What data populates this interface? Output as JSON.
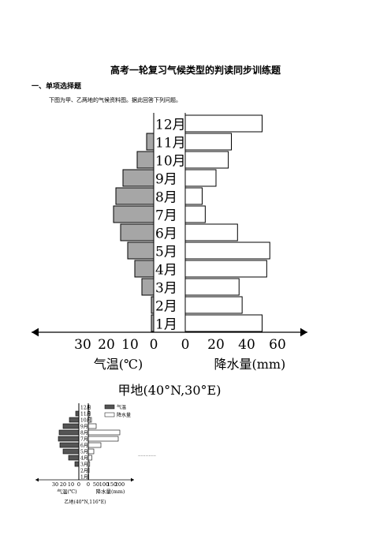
{
  "document": {
    "title": "高考一轮复习气候类型的判读同步训练题",
    "section": "一、单项选择题",
    "question": "下图为甲、乙两地的气候资料图。据此回答下列问题。",
    "dots": "............"
  },
  "chart_data": [
    {
      "type": "bar",
      "orientation": "horizontal-butterfly",
      "title": "甲地(40°N,30°E)",
      "categories": [
        "1月",
        "2月",
        "3月",
        "4月",
        "5月",
        "6月",
        "7月",
        "8月",
        "9月",
        "10月",
        "11月",
        "12月"
      ],
      "left_axis": {
        "label": "气温(℃)",
        "ticks": [
          "30",
          "20",
          "10",
          "0"
        ],
        "range": [
          0,
          30
        ]
      },
      "right_axis": {
        "label": "降水量(mm)",
        "ticks": [
          "0",
          "20",
          "40",
          "60"
        ],
        "range": [
          0,
          60
        ]
      },
      "series": [
        {
          "name": "气温",
          "values": [
            1,
            1,
            5,
            8,
            11,
            14,
            17,
            16,
            13,
            7,
            3,
            0
          ]
        },
        {
          "name": "降水量",
          "values": [
            50,
            37,
            35,
            53,
            55,
            34,
            13,
            11,
            20,
            28,
            30,
            50
          ]
        }
      ],
      "colors": {
        "temperature": "#a6a6a6",
        "precipitation": "#ffffff"
      }
    },
    {
      "type": "bar",
      "orientation": "horizontal-butterfly",
      "title": "乙地(40°N,116°E)",
      "categories": [
        "1月",
        "2月",
        "3月",
        "4月",
        "5月",
        "6月",
        "7月",
        "8月",
        "9月",
        "10月",
        "11月",
        "12月"
      ],
      "left_axis": {
        "label": "气温(℃)",
        "ticks": [
          "30",
          "20",
          "10",
          "0"
        ],
        "range": [
          0,
          30
        ]
      },
      "right_axis": {
        "label": "降水量(mm)",
        "ticks": [
          "0",
          "50",
          "100",
          "150",
          "200"
        ],
        "range": [
          0,
          200
        ]
      },
      "series": [
        {
          "name": "气温",
          "values": [
            -5,
            -2,
            5,
            13,
            20,
            24,
            26,
            25,
            20,
            12,
            4,
            -3
          ]
        },
        {
          "name": "降水量",
          "values": [
            3,
            5,
            9,
            22,
            35,
            80,
            190,
            200,
            50,
            20,
            9,
            3
          ]
        }
      ],
      "legend": [
        "气温",
        "降水量"
      ],
      "colors": {
        "temperature": "#555555",
        "precipitation": "#ffffff"
      }
    }
  ]
}
